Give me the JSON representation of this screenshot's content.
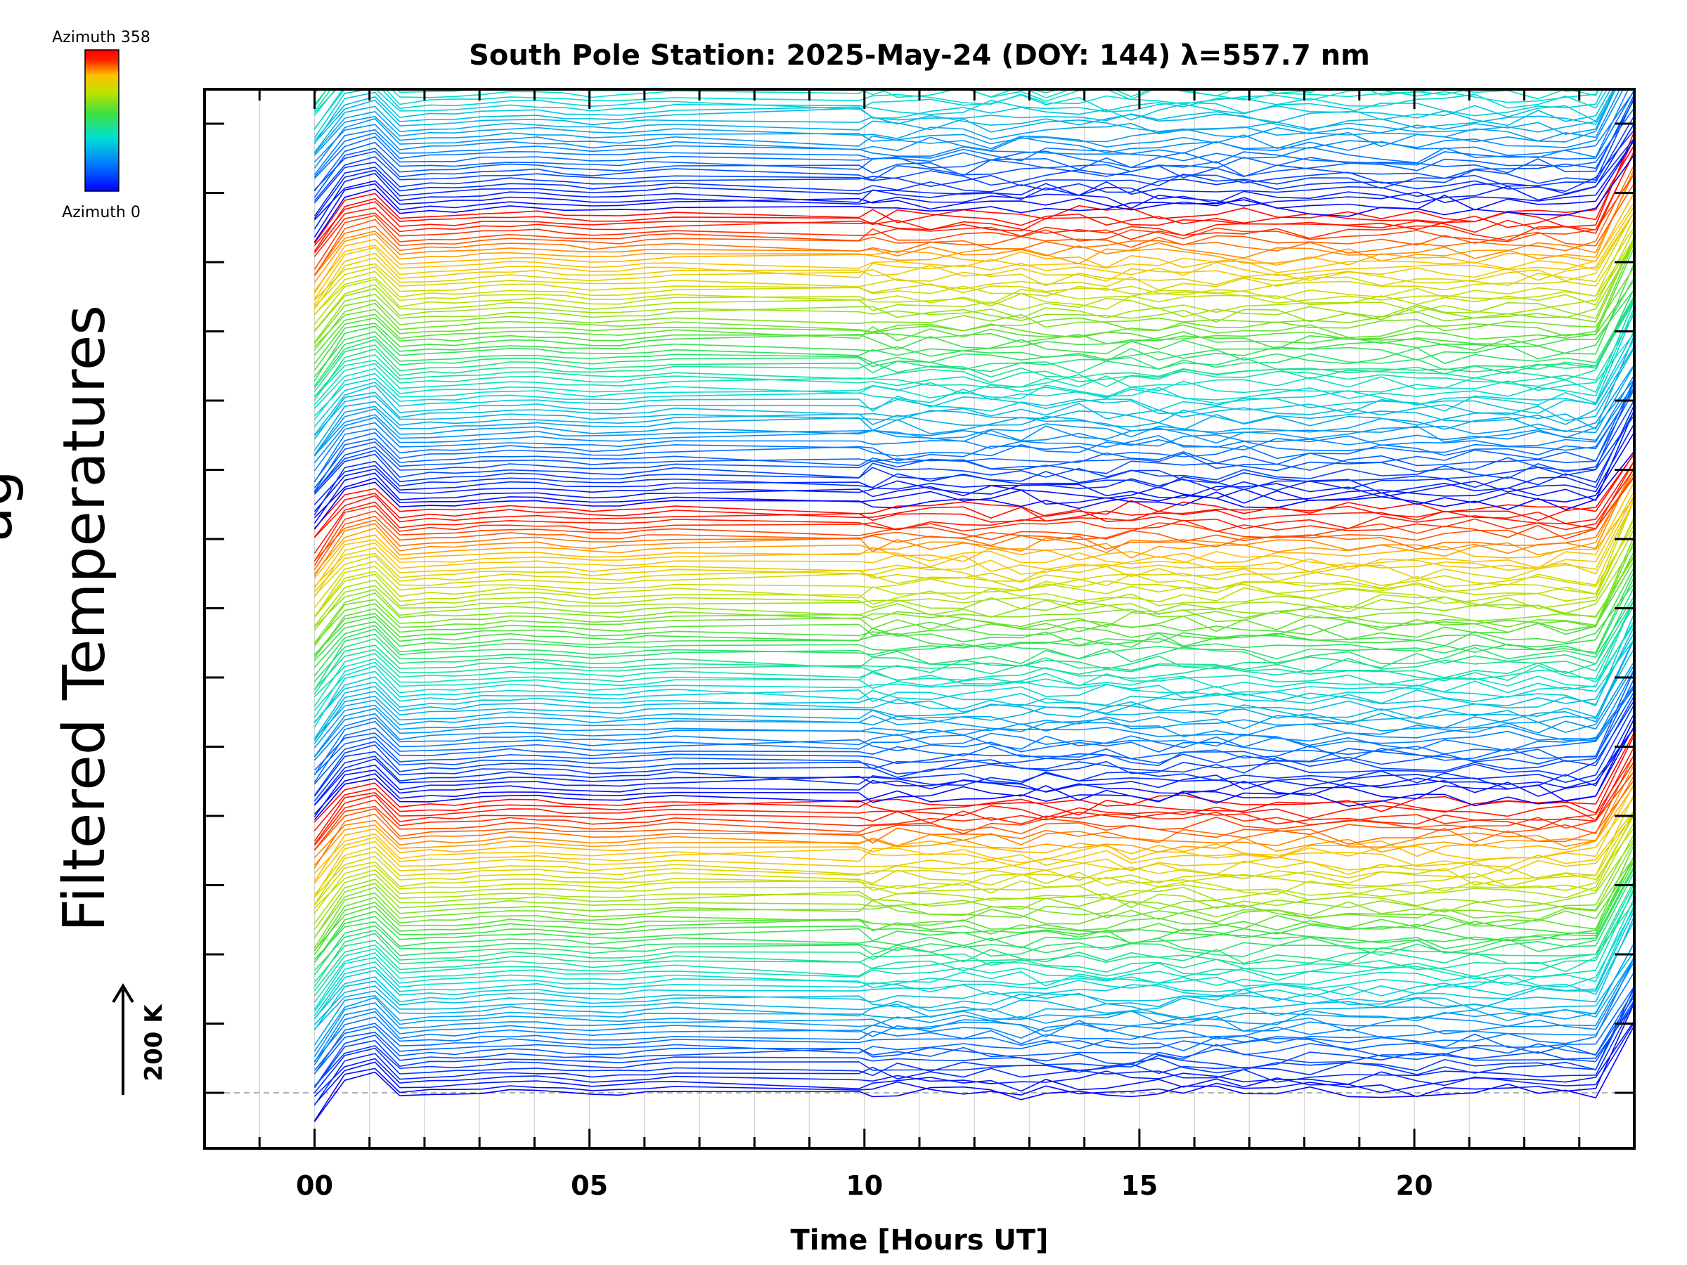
{
  "chart_data": {
    "type": "line",
    "title": "South Pole Station: 2025-May-24 (DOY: 144) λ=557.7 nm",
    "xlabel": "Time [Hours UT]",
    "ylabel": "Filtered Temperatures",
    "ylabel_cut_text": "ag",
    "scale_label": "200 K",
    "scale_value_k": 200,
    "xlim": [
      -2,
      24
    ],
    "x_ticks": [
      0,
      5,
      10,
      15,
      20
    ],
    "x_tick_labels": [
      "00",
      "05",
      "10",
      "15",
      "20"
    ],
    "x_minor_step": 1,
    "grid": "vertical, every hour",
    "n_groups": 5,
    "n_azimuth_steps": 16,
    "trace_spacing_k": 100,
    "traces_per_group": 64,
    "baseline_dashed": true,
    "time_samples_hours": [
      0,
      0.55,
      1.1,
      1.55,
      2.1,
      2.55,
      3.05,
      3.55,
      4.05,
      4.55,
      5.05,
      5.55,
      6.05,
      6.55,
      9.9,
      10.15,
      10.6,
      11.2,
      11.8,
      12.3,
      12.85,
      13.3,
      13.9,
      14.4,
      14.85,
      15.35,
      15.8,
      16.4,
      16.9,
      17.5,
      18.1,
      18.8,
      19.4,
      20.05,
      20.55,
      21.1,
      21.7,
      22.25,
      22.75,
      23.3,
      24
    ],
    "colorbar": {
      "label_top": "Azimuth 358",
      "label_bottom": "Azimuth 0",
      "colors": [
        "#0000ff",
        "#0080ff",
        "#00e0d0",
        "#40e040",
        "#c0e000",
        "#ffc000",
        "#ff2000",
        "#ff0000"
      ]
    }
  }
}
